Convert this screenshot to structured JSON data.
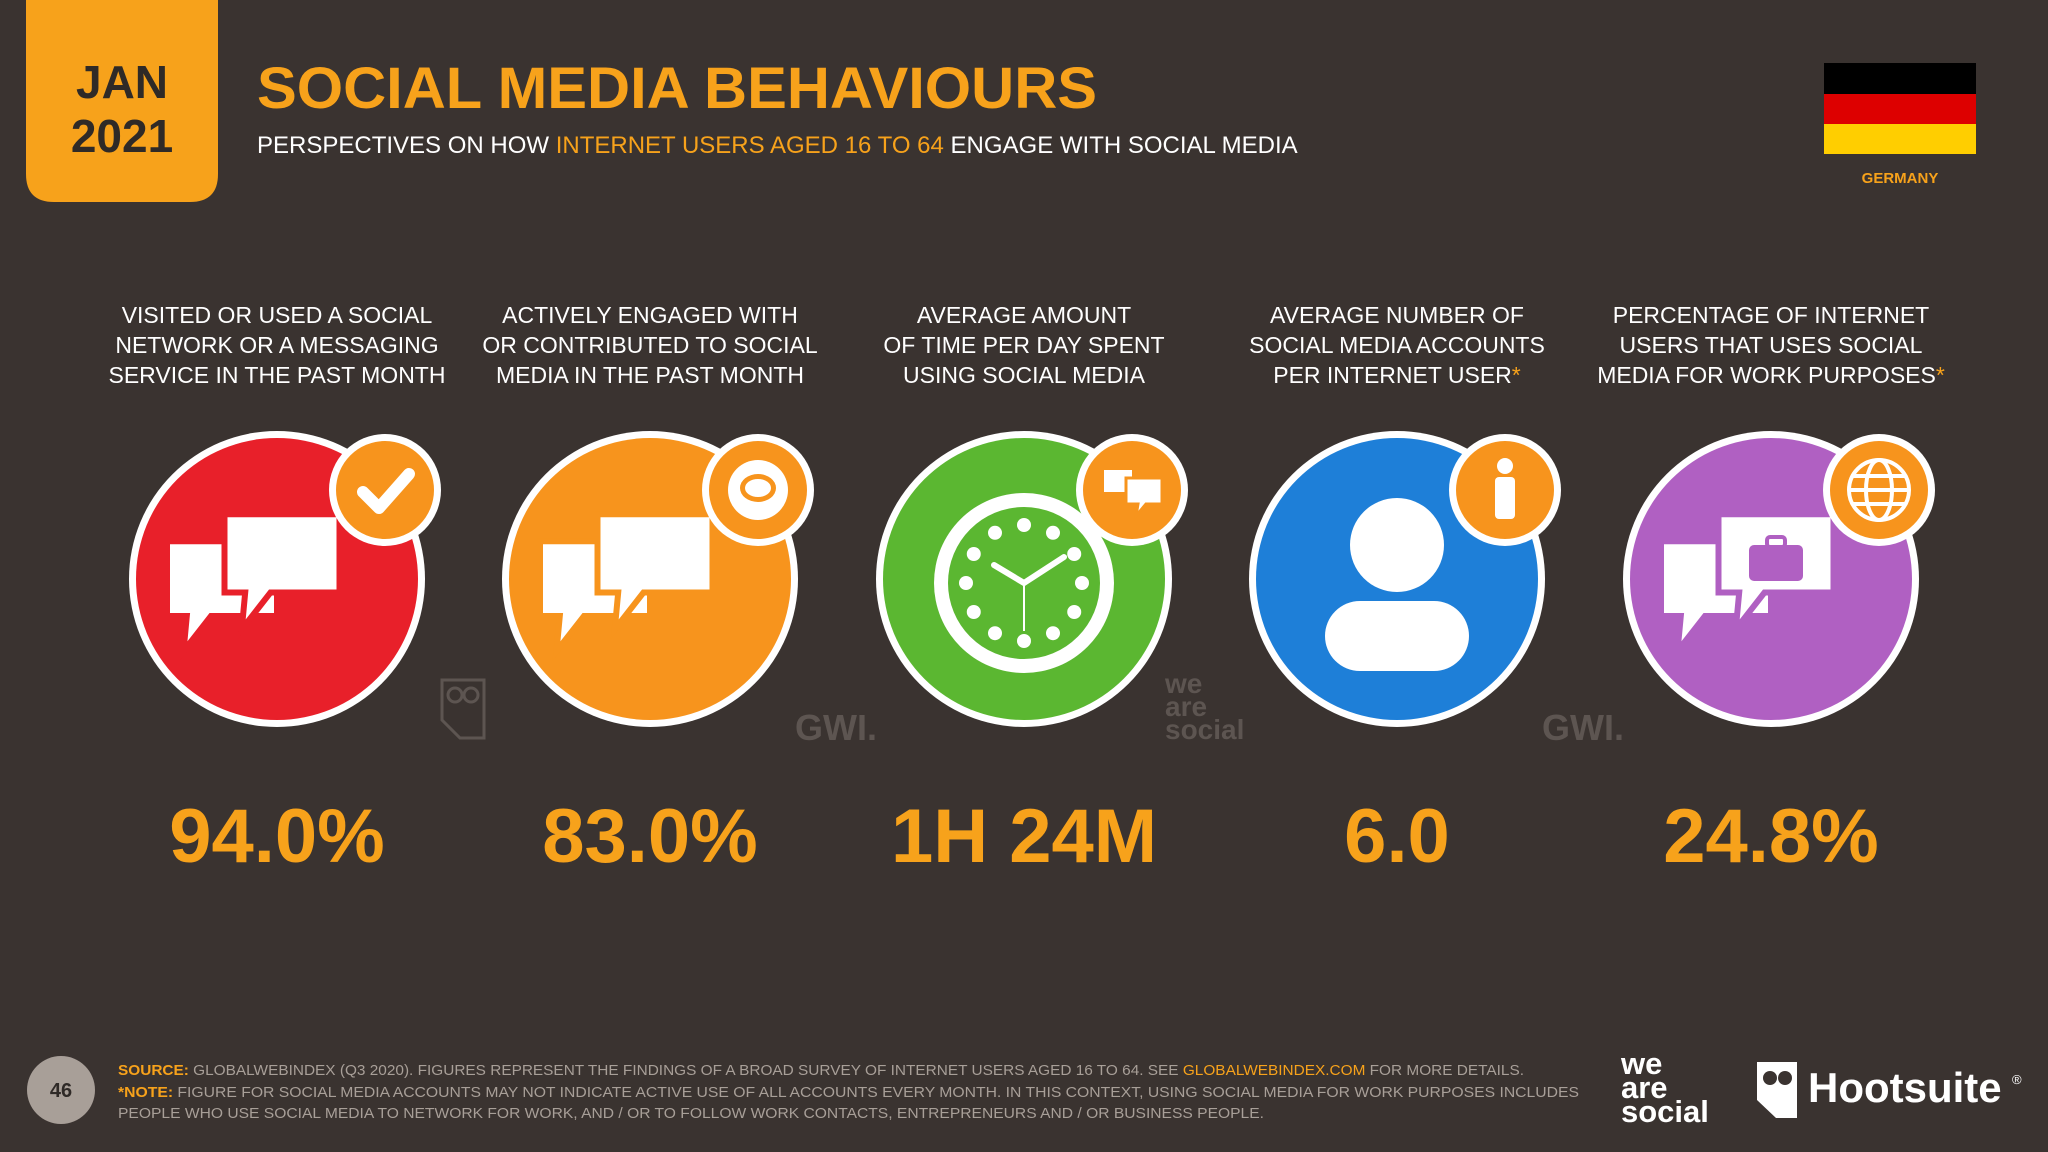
{
  "header": {
    "month": "JAN",
    "year": "2021",
    "title": "SOCIAL MEDIA BEHAVIOURS",
    "subtitle": {
      "before": "PERSPECTIVES ON HOW",
      "highlight": "INTERNET USERS AGED 16 TO 64",
      "after": "ENGAGE WITH SOCIAL MEDIA"
    },
    "country": "GERMANY"
  },
  "stats": [
    {
      "label": [
        "VISITED OR USED A SOCIAL",
        "NETWORK OR A MESSAGING",
        "SERVICE IN THE PAST MONTH"
      ],
      "value": "94.0%"
    },
    {
      "label": [
        "ACTIVELY ENGAGED WITH",
        "OR CONTRIBUTED TO SOCIAL",
        "MEDIA IN THE PAST MONTH"
      ],
      "value": "83.0%"
    },
    {
      "label": [
        "AVERAGE AMOUNT",
        "OF TIME PER DAY SPENT",
        "USING SOCIAL MEDIA"
      ],
      "value": "1H 24M"
    },
    {
      "label": [
        "AVERAGE NUMBER OF",
        "SOCIAL MEDIA ACCOUNTS",
        "PER INTERNET USER"
      ],
      "marker": "*",
      "value": "6.0"
    },
    {
      "label": [
        "PERCENTAGE OF INTERNET",
        "USERS THAT USES SOCIAL",
        "MEDIA FOR WORK PURPOSES"
      ],
      "marker": "*",
      "value": "24.8%"
    }
  ],
  "watermarks": {
    "gwi": [
      "GWI.",
      "GWI."
    ],
    "we_are_social": [
      "we",
      "are",
      "social"
    ]
  },
  "footer": {
    "page": "46",
    "source_label": "SOURCE:",
    "source_text": "GLOBALWEBINDEX (Q3 2020). FIGURES REPRESENT THE FINDINGS OF A BROAD SURVEY OF INTERNET USERS AGED 16 TO 64. SEE",
    "source_link": "GLOBALWEBINDEX.COM",
    "source_end": "FOR MORE DETAILS.",
    "note_label": "*NOTE:",
    "note_lines": [
      "FIGURE FOR SOCIAL MEDIA ACCOUNTS MAY NOT INDICATE ACTIVE USE OF ALL ACCOUNTS EVERY MONTH. IN THIS CONTEXT, USING SOCIAL MEDIA FOR WORK PURPOSES INCLUDES",
      "PEOPLE WHO USE SOCIAL MEDIA TO NETWORK FOR WORK, AND / OR TO FOLLOW WORK CONTACTS, ENTREPRENEURS AND / OR BUSINESS PEOPLE."
    ]
  },
  "logos": {
    "we_are_social": [
      "we",
      "are",
      "social"
    ],
    "hootsuite": "Hootsuite",
    "registered": "®"
  }
}
